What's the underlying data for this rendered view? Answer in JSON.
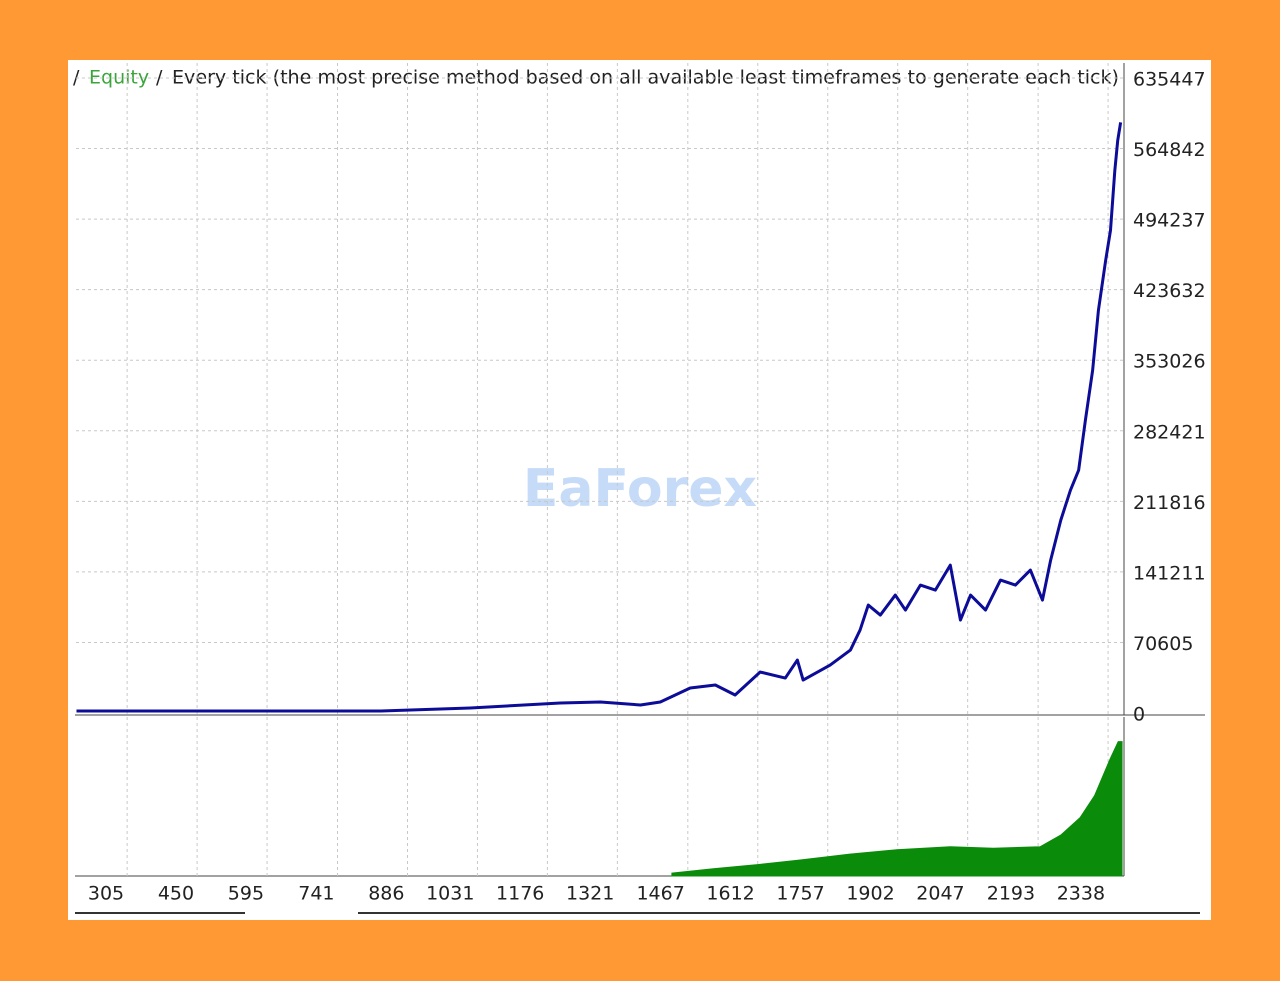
{
  "chart_data": [
    {
      "type": "line",
      "separator": "/",
      "subtitle": "Every tick (the most precise method based on all available least timeframes to generate each tick)",
      "watermark": "EaForex",
      "series": [
        {
          "name": "Equity",
          "color": "#0c0c99",
          "x": [
            200,
            830,
            1016,
            1203,
            1286,
            1369,
            1410,
            1472,
            1524,
            1565,
            1617,
            1669,
            1694,
            1706,
            1762,
            1804,
            1824,
            1841,
            1866,
            1897,
            1918,
            1949,
            1980,
            2011,
            2032,
            2053,
            2084,
            2115,
            2146,
            2177,
            2202,
            2219,
            2240,
            2260,
            2277,
            2291,
            2306,
            2318,
            2333,
            2343,
            2352,
            2358,
            2364
          ],
          "values": [
            2000,
            2000,
            5000,
            10000,
            11000,
            8000,
            11000,
            25000,
            28000,
            18000,
            41000,
            35000,
            53000,
            33000,
            48000,
            63000,
            83000,
            108000,
            98000,
            118000,
            103000,
            128000,
            123000,
            148000,
            93000,
            118000,
            103000,
            133000,
            128000,
            143000,
            113000,
            153000,
            193000,
            223000,
            243000,
            293000,
            343000,
            403000,
            453000,
            483000,
            543000,
            573000,
            591000
          ]
        }
      ],
      "xlim": [
        199,
        2371
      ],
      "ylim": [
        0,
        635447
      ],
      "xticks": [
        305,
        450,
        595,
        741,
        886,
        1031,
        1176,
        1321,
        1467,
        1612,
        1757,
        1902,
        2047,
        2193,
        2338
      ],
      "yticks": [
        0,
        70605,
        141211,
        211816,
        282421,
        353026,
        423632,
        494237,
        564842,
        635447
      ],
      "grid": true
    },
    {
      "type": "area",
      "series": [
        {
          "color": "#0a8c0a",
          "x": [
            1434,
            1520,
            1617,
            1700,
            1803,
            1900,
            2011,
            2100,
            2197,
            2240,
            2280,
            2310,
            2342,
            2359,
            2367
          ],
          "values": [
            2,
            5,
            8,
            11,
            15,
            18,
            20,
            19,
            20,
            28,
            40,
            55,
            80,
            92,
            92
          ]
        }
      ],
      "xlim": [
        199,
        2371
      ],
      "ylim": [
        0,
        100
      ]
    }
  ]
}
